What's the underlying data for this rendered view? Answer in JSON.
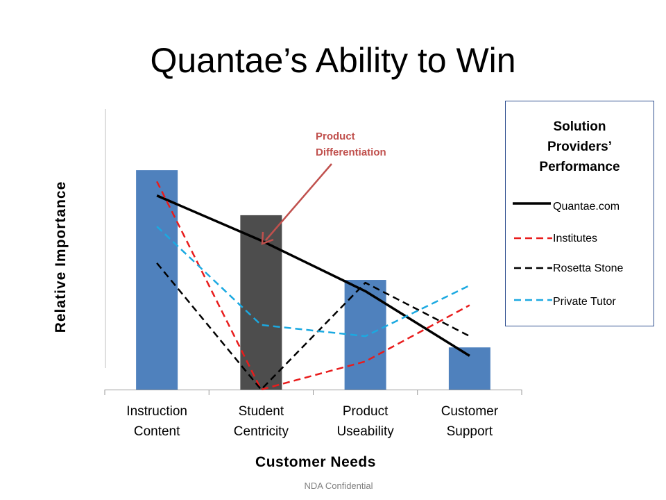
{
  "title": "Quantae’s Ability to Win",
  "footer": "NDA Confidential",
  "colors": {
    "bar_blue": "#4f81bd",
    "bar_highlight": "#4d4d4d",
    "quantae": "#000000",
    "institutes": "#e81c1c",
    "rosetta": "#000000",
    "tutor": "#1ba9e1",
    "annotation": "#c0504d"
  },
  "chart_data": {
    "type": "bar",
    "title": "Quantae’s Ability to Win",
    "xlabel": "Customer Needs",
    "ylabel": "Relative Importance",
    "ylim": [
      0,
      100
    ],
    "grid": false,
    "categories": [
      "Instruction Content",
      "Student Centricity",
      "Product Useability",
      "Customer Support"
    ],
    "category_lines": [
      [
        "Instruction",
        "Content"
      ],
      [
        "Student",
        "Centricity"
      ],
      [
        "Product",
        "Useability"
      ],
      [
        "Customer",
        "Support"
      ]
    ],
    "bars": [
      78,
      62,
      39,
      15
    ],
    "highlighted_bar": 1,
    "series": [
      {
        "name": "Quantae.com",
        "style": "solid",
        "values": [
          69,
          53,
          35,
          12
        ]
      },
      {
        "name": "Institutes",
        "style": "dashed",
        "values": [
          74,
          0,
          10,
          30
        ]
      },
      {
        "name": "Rosetta Stone",
        "style": "dashed",
        "values": [
          45,
          0,
          38,
          19
        ]
      },
      {
        "name": "Private Tutor",
        "style": "dashed",
        "values": [
          58,
          23,
          19,
          37
        ]
      }
    ],
    "legend": {
      "title_lines": [
        "Solution",
        "Providers’",
        "Performance"
      ],
      "position": "right"
    },
    "annotation": {
      "lines": [
        "Product",
        "Differentiation"
      ],
      "target_category": 1
    }
  }
}
